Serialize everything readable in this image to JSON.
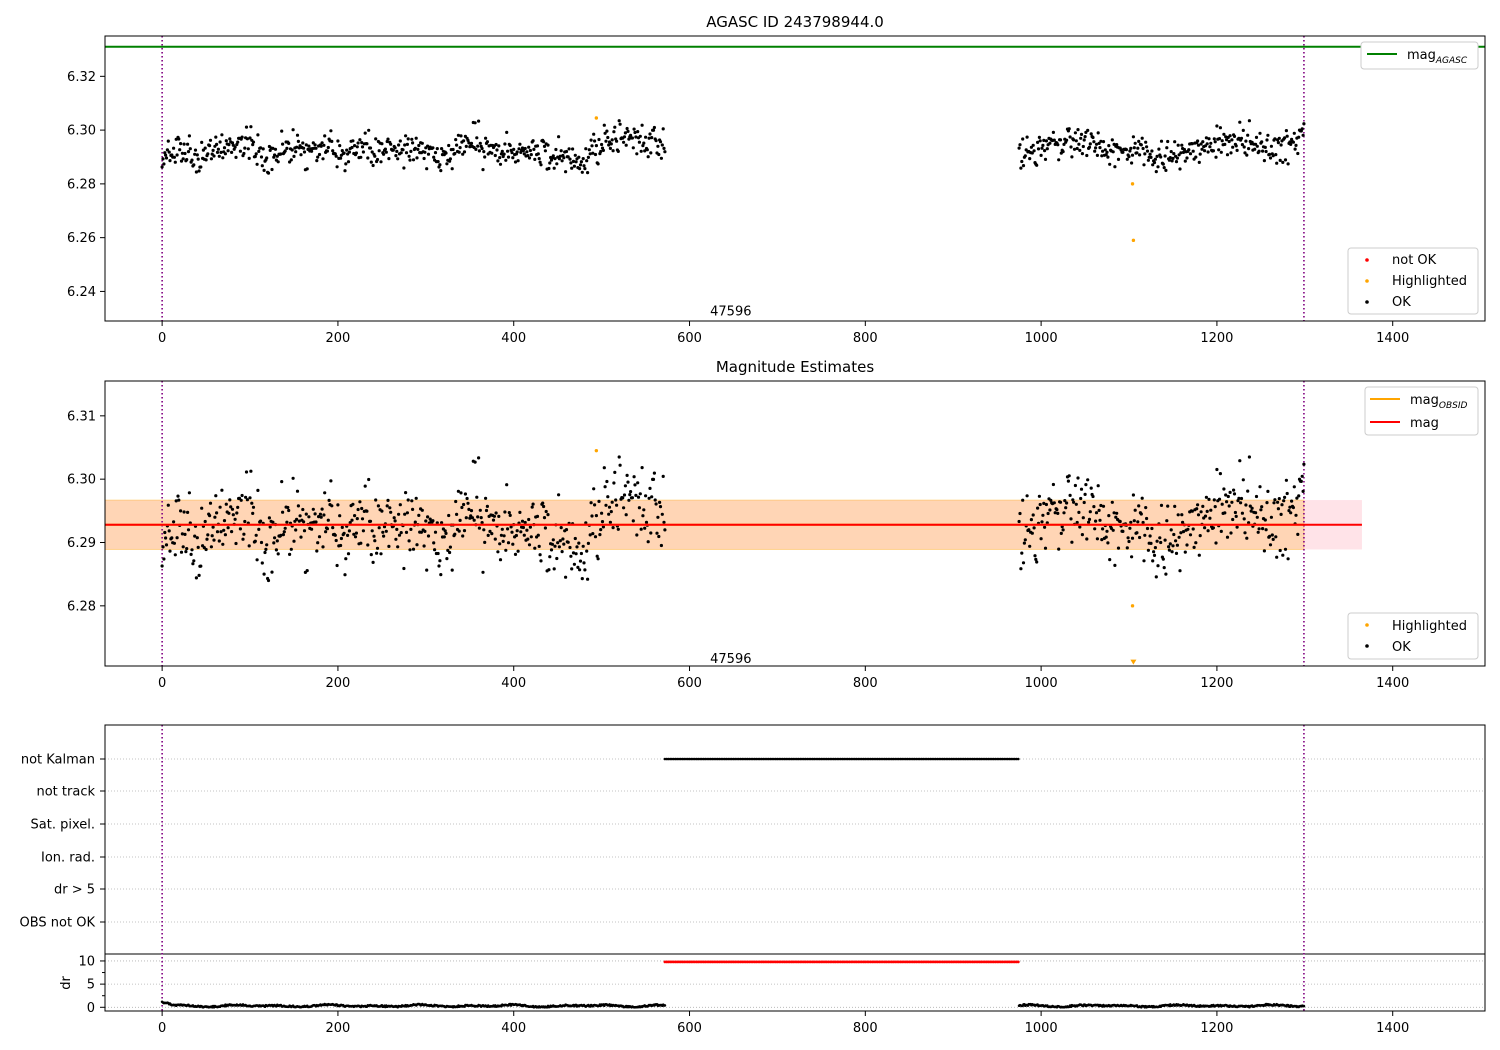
{
  "chart_data": [
    {
      "id": "agasc",
      "type": "scatter",
      "title": "AGASC ID 243798944.0",
      "xlim": [
        -65,
        1505
      ],
      "ylim": [
        6.229,
        6.335
      ],
      "xticks": [
        0,
        200,
        400,
        600,
        800,
        1000,
        1200,
        1400
      ],
      "yticks": [
        6.24,
        6.26,
        6.28,
        6.3,
        6.32
      ],
      "vlines": [
        0,
        1299
      ],
      "obsid_label": {
        "text": "47596",
        "x": 647,
        "y": 6.2325
      },
      "mag_agasc": {
        "name": "mag",
        "subscript": "AGASC",
        "y": 6.331,
        "color": "#008000"
      },
      "legend_upper": [
        {
          "label": "mag",
          "subscript": "AGASC",
          "color": "#008000"
        }
      ],
      "legend_lower": [
        {
          "label": "not OK",
          "color": "#ff0000"
        },
        {
          "label": "Highlighted",
          "color": "#ffa500"
        },
        {
          "label": "OK",
          "color": "#000000"
        }
      ],
      "highlighted": [
        [
          494,
          6.3045
        ],
        [
          1104,
          6.28
        ],
        [
          1105,
          6.259
        ]
      ],
      "ok_segments": [
        {
          "x0": 0,
          "x1": 572,
          "control": [
            [
              0,
              6.292
            ],
            [
              40,
              6.29
            ],
            [
              60,
              6.293
            ],
            [
              80,
              6.294
            ],
            [
              100,
              6.295
            ],
            [
              120,
              6.289
            ],
            [
              140,
              6.294
            ],
            [
              160,
              6.291
            ],
            [
              180,
              6.293
            ],
            [
              200,
              6.291
            ],
            [
              230,
              6.293
            ],
            [
              260,
              6.294
            ],
            [
              300,
              6.291
            ],
            [
              330,
              6.292
            ],
            [
              355,
              6.296
            ],
            [
              380,
              6.291
            ],
            [
              420,
              6.292
            ],
            [
              445,
              6.291
            ],
            [
              470,
              6.289
            ],
            [
              480,
              6.288
            ],
            [
              500,
              6.294
            ],
            [
              520,
              6.297
            ],
            [
              550,
              6.296
            ],
            [
              572,
              6.295
            ]
          ],
          "spread": 0.0029
        },
        {
          "x0": 975,
          "x1": 1299,
          "control": [
            [
              975,
              6.292
            ],
            [
              1000,
              6.293
            ],
            [
              1030,
              6.295
            ],
            [
              1050,
              6.296
            ],
            [
              1080,
              6.293
            ],
            [
              1110,
              6.292
            ],
            [
              1140,
              6.29
            ],
            [
              1170,
              6.291
            ],
            [
              1200,
              6.296
            ],
            [
              1230,
              6.296
            ],
            [
              1255,
              6.293
            ],
            [
              1285,
              6.295
            ],
            [
              1299,
              6.298
            ]
          ],
          "spread": 0.0029
        }
      ]
    },
    {
      "id": "mag_estimates",
      "type": "scatter",
      "title": "Magnitude Estimates",
      "xlim": [
        -65,
        1505
      ],
      "ylim": [
        6.2705,
        6.3155
      ],
      "xticks": [
        0,
        200,
        400,
        600,
        800,
        1000,
        1200,
        1400
      ],
      "yticks": [
        6.28,
        6.29,
        6.3,
        6.31
      ],
      "vlines": [
        0,
        1299
      ],
      "obsid_label": {
        "text": "47596",
        "x": 647,
        "y": 6.2716
      },
      "mag": {
        "name": "mag",
        "y": 6.2928,
        "band": [
          6.2889,
          6.2967
        ],
        "x_range": [
          -65,
          1365
        ],
        "color": "#ff0000"
      },
      "mag_obsid": {
        "name": "mag",
        "subscript": "OBSID",
        "y": 6.2928,
        "band": [
          6.2889,
          6.2967
        ],
        "x_range": [
          -65,
          1299
        ],
        "color": "#ffa500"
      },
      "legend_upper": [
        {
          "label": "mag",
          "subscript": "OBSID",
          "color": "#ffa500"
        },
        {
          "label": "mag",
          "color": "#ff0000"
        }
      ],
      "legend_lower": [
        {
          "label": "Highlighted",
          "color": "#ffa500"
        },
        {
          "label": "OK",
          "color": "#000000"
        }
      ],
      "highlighted": [
        [
          494,
          6.3045
        ],
        [
          1104,
          6.28
        ]
      ],
      "off_scale_marker": {
        "x": 1105,
        "y": 6.2712,
        "color": "#ffa500"
      }
    },
    {
      "id": "flags",
      "type": "scatter",
      "xlim": [
        -65,
        1505
      ],
      "xticks": [
        0,
        200,
        400,
        600,
        800,
        1000,
        1200,
        1400
      ],
      "vlines": [
        0,
        1299
      ],
      "flag_labels": [
        "not Kalman",
        "not track",
        "Sat. pixel.",
        "Ion. rad.",
        "dr > 5",
        "OBS not OK"
      ],
      "not_kalman_range": [
        572,
        975
      ],
      "dr": {
        "ylabel": "dr",
        "ylim": [
          -0.8,
          11.5
        ],
        "yticks": [
          0,
          5,
          10
        ],
        "high_range": [
          572,
          975
        ],
        "high_value": 9.8,
        "high_color": "#ff0000"
      }
    }
  ]
}
